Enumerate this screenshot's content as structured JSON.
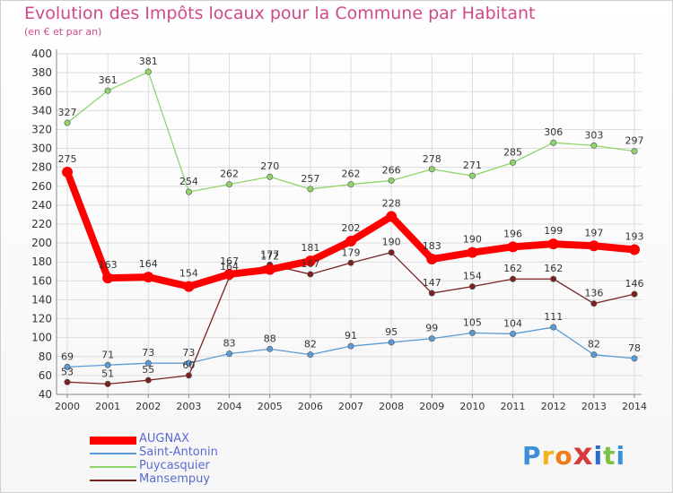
{
  "title": "Evolution des Impôts locaux pour la Commune par Habitant",
  "subtitle": "(en € et par an)",
  "logo": {
    "text": "Proxiti",
    "colors": [
      "#3c8fd8",
      "#f1b21c",
      "#f07b1a",
      "#d63a3a",
      "#2c6bd0",
      "#7cc242",
      "#3c8fd8"
    ]
  },
  "chart_data": {
    "type": "line",
    "title": "Evolution des Impôts locaux pour la Commune par Habitant",
    "subtitle": "(en € et par an)",
    "x": [
      "2000",
      "2001",
      "2002",
      "2003",
      "2004",
      "2005",
      "2006",
      "2007",
      "2008",
      "2009",
      "2010",
      "2011",
      "2012",
      "2013",
      "2014"
    ],
    "yticks": [
      40,
      60,
      80,
      100,
      120,
      140,
      160,
      180,
      200,
      220,
      240,
      260,
      280,
      300,
      320,
      340,
      360,
      380,
      400
    ],
    "ylim": [
      40,
      400
    ],
    "grid": true,
    "legend_position": "bottom-left",
    "series": [
      {
        "name": "AUGNAX",
        "color": "#ff0000",
        "width": "thick",
        "values": [
          275,
          163,
          164,
          154,
          167,
          172,
          181,
          202,
          228,
          183,
          190,
          196,
          199,
          197,
          193
        ]
      },
      {
        "name": "Saint-Antonin",
        "color": "#5b9bd5",
        "width": "thin",
        "values": [
          69,
          71,
          73,
          73,
          83,
          88,
          82,
          91,
          95,
          99,
          105,
          104,
          111,
          82,
          78
        ]
      },
      {
        "name": "Puycasquier",
        "color": "#8fd46a",
        "width": "thin",
        "values": [
          327,
          361,
          381,
          254,
          262,
          270,
          257,
          262,
          266,
          278,
          271,
          285,
          306,
          303,
          297
        ]
      },
      {
        "name": "Mansempuy",
        "color": "#7a2222",
        "width": "thin",
        "values": [
          53,
          51,
          55,
          60,
          164,
          177,
          167,
          179,
          190,
          147,
          154,
          162,
          162,
          136,
          146
        ]
      }
    ]
  }
}
